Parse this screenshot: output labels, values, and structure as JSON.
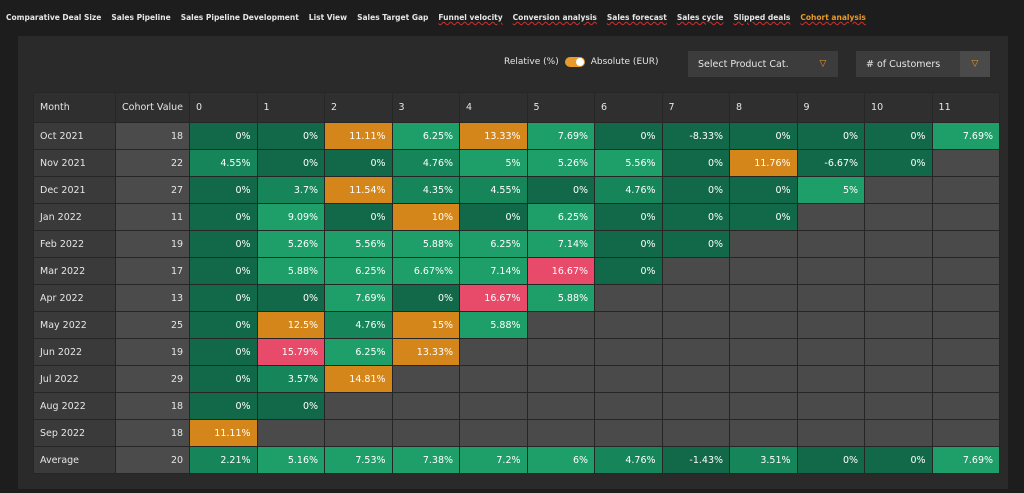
{
  "tabs": [
    "Comparative Deal Size",
    "Sales Pipeline",
    "Sales Pipeline Development",
    "List View",
    "Sales Target Gap",
    "Funnel velocity",
    "Conversion analysis",
    "Sales forecast",
    "Sales cycle",
    "Slipped deals",
    "Cohort analysis"
  ],
  "active_tab": 10,
  "toggle": {
    "left": "Relative (%)",
    "right": "Absolute (EUR)"
  },
  "dropdowns": [
    "Select Product Cat.",
    "# of Customers"
  ],
  "table": {
    "header": [
      "Month",
      "Cohort Value",
      "0",
      "1",
      "2",
      "3",
      "4",
      "5",
      "6",
      "7",
      "8",
      "9",
      "10",
      "11"
    ],
    "rows": [
      {
        "label": "Oct 2021",
        "cohort": 18,
        "cells": [
          "0%",
          "0%",
          "11.11%",
          "6.25%",
          "13.33%",
          "7.69%",
          "0%",
          "-8.33%",
          "0%",
          "0%",
          "0%",
          "7.69%"
        ],
        "colors": [
          "#11694a",
          "#11694a",
          "#d4861b",
          "#1e9e68",
          "#d4861b",
          "#1e9e68",
          "#11694a",
          "#11694a",
          "#11694a",
          "#11694a",
          "#11694a",
          "#1e9e68"
        ]
      },
      {
        "label": "Nov 2021",
        "cohort": 22,
        "cells": [
          "4.55%",
          "0%",
          "0%",
          "4.76%",
          "5%",
          "5.26%",
          "5.56%",
          "0%",
          "11.76%",
          "-6.67%",
          "0%"
        ],
        "colors": [
          "#17855a",
          "#11694a",
          "#11694a",
          "#17855a",
          "#1e9e68",
          "#1e9e68",
          "#1e9e68",
          "#11694a",
          "#d4861b",
          "#11694a",
          "#11694a"
        ]
      },
      {
        "label": "Dec 2021",
        "cohort": 27,
        "cells": [
          "0%",
          "3.7%",
          "11.54%",
          "4.35%",
          "4.55%",
          "0%",
          "4.76%",
          "0%",
          "0%",
          "5%"
        ],
        "colors": [
          "#11694a",
          "#17855a",
          "#d4861b",
          "#17855a",
          "#17855a",
          "#11694a",
          "#17855a",
          "#11694a",
          "#11694a",
          "#1e9e68"
        ]
      },
      {
        "label": "Jan 2022",
        "cohort": 11,
        "cells": [
          "0%",
          "9.09%",
          "0%",
          "10%",
          "0%",
          "6.25%",
          "0%",
          "0%",
          "0%"
        ],
        "colors": [
          "#11694a",
          "#1e9e68",
          "#11694a",
          "#d4861b",
          "#11694a",
          "#1e9e68",
          "#11694a",
          "#11694a",
          "#11694a"
        ]
      },
      {
        "label": "Feb 2022",
        "cohort": 19,
        "cells": [
          "0%",
          "5.26%",
          "5.56%",
          "5.88%",
          "6.25%",
          "7.14%",
          "0%",
          "0%"
        ],
        "colors": [
          "#11694a",
          "#1e9e68",
          "#1e9e68",
          "#1e9e68",
          "#1e9e68",
          "#1e9e68",
          "#11694a",
          "#11694a"
        ]
      },
      {
        "label": "Mar 2022",
        "cohort": 17,
        "cells": [
          "0%",
          "5.88%",
          "6.25%",
          "6.67%%",
          "7.14%",
          "16.67%",
          "0%"
        ],
        "colors": [
          "#11694a",
          "#1e9e68",
          "#1e9e68",
          "#1e9e68",
          "#1e9e68",
          "#e84a6a",
          "#11694a"
        ]
      },
      {
        "label": "Apr 2022",
        "cohort": 13,
        "cells": [
          "0%",
          "0%",
          "7.69%",
          "0%",
          "16.67%",
          "5.88%"
        ],
        "colors": [
          "#11694a",
          "#11694a",
          "#1e9e68",
          "#11694a",
          "#e84a6a",
          "#1e9e68"
        ]
      },
      {
        "label": "May 2022",
        "cohort": 25,
        "cells": [
          "0%",
          "12.5%",
          "4.76%",
          "15%",
          "5.88%"
        ],
        "colors": [
          "#11694a",
          "#d4861b",
          "#17855a",
          "#d4861b",
          "#1e9e68"
        ]
      },
      {
        "label": "Jun 2022",
        "cohort": 19,
        "cells": [
          "0%",
          "15.79%",
          "6.25%",
          "13.33%"
        ],
        "colors": [
          "#11694a",
          "#e84a6a",
          "#1e9e68",
          "#d4861b"
        ]
      },
      {
        "label": "Jul 2022",
        "cohort": 29,
        "cells": [
          "0%",
          "3.57%",
          "14.81%"
        ],
        "colors": [
          "#11694a",
          "#17855a",
          "#d4861b"
        ]
      },
      {
        "label": "Aug 2022",
        "cohort": 18,
        "cells": [
          "0%",
          "0%"
        ],
        "colors": [
          "#11694a",
          "#11694a"
        ]
      },
      {
        "label": "Sep 2022",
        "cohort": 18,
        "cells": [
          "11.11%"
        ],
        "colors": [
          "#d4861b"
        ]
      },
      {
        "label": "Average",
        "cohort": 20,
        "cells": [
          "2.21%",
          "5.16%",
          "7.53%",
          "7.38%",
          "7.2%",
          "6%",
          "4.76%",
          "-1.43%",
          "3.51%",
          "0%",
          "0%",
          "7.69%"
        ],
        "colors": [
          "#17855a",
          "#1e9e68",
          "#1e9e68",
          "#1e9e68",
          "#1e9e68",
          "#1e9e68",
          "#17855a",
          "#11694a",
          "#17855a",
          "#11694a",
          "#11694a",
          "#1e9e68"
        ]
      }
    ]
  }
}
